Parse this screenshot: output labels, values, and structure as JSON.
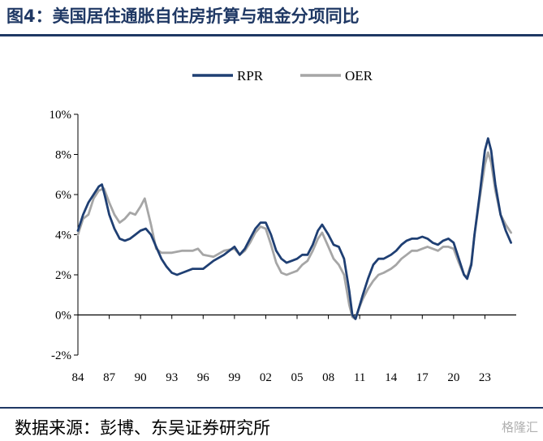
{
  "title": "图4：美国居住通胀自住房折算与租金分项同比",
  "source": "数据来源：彭博、东吴证券研究所",
  "watermark": "格隆汇",
  "colors": {
    "rpr": "#1f3f73",
    "oer": "#a6a6a6",
    "title": "#1f3864"
  },
  "chart_data": {
    "type": "line",
    "title": "",
    "xlabel": "",
    "ylabel": "",
    "x_ticks": [
      "84",
      "87",
      "90",
      "93",
      "96",
      "99",
      "02",
      "05",
      "08",
      "11",
      "14",
      "17",
      "20",
      "23"
    ],
    "y_ticks": [
      "10%",
      "8%",
      "6%",
      "4%",
      "2%",
      "0%",
      "-2%"
    ],
    "xlim": [
      1984.0,
      2026.0
    ],
    "ylim": [
      -2,
      10
    ],
    "legend_position": "top-center",
    "series": [
      {
        "name": "RPR",
        "points": [
          [
            1984.0,
            4.2
          ],
          [
            1984.5,
            5.0
          ],
          [
            1985.0,
            5.6
          ],
          [
            1985.5,
            6.0
          ],
          [
            1986.0,
            6.4
          ],
          [
            1986.3,
            6.5
          ],
          [
            1986.6,
            5.9
          ],
          [
            1987.0,
            5.0
          ],
          [
            1987.5,
            4.3
          ],
          [
            1988.0,
            3.8
          ],
          [
            1988.5,
            3.7
          ],
          [
            1989.0,
            3.8
          ],
          [
            1989.5,
            4.0
          ],
          [
            1990.0,
            4.2
          ],
          [
            1990.5,
            4.3
          ],
          [
            1991.0,
            4.0
          ],
          [
            1991.5,
            3.4
          ],
          [
            1992.0,
            2.8
          ],
          [
            1992.5,
            2.4
          ],
          [
            1993.0,
            2.1
          ],
          [
            1993.5,
            2.0
          ],
          [
            1994.0,
            2.1
          ],
          [
            1995.0,
            2.3
          ],
          [
            1996.0,
            2.3
          ],
          [
            1997.0,
            2.7
          ],
          [
            1998.0,
            3.0
          ],
          [
            1999.0,
            3.4
          ],
          [
            1999.5,
            3.0
          ],
          [
            2000.0,
            3.3
          ],
          [
            2000.5,
            3.8
          ],
          [
            2001.0,
            4.3
          ],
          [
            2001.5,
            4.6
          ],
          [
            2002.0,
            4.6
          ],
          [
            2002.5,
            4.0
          ],
          [
            2003.0,
            3.2
          ],
          [
            2003.5,
            2.8
          ],
          [
            2004.0,
            2.6
          ],
          [
            2004.5,
            2.7
          ],
          [
            2005.0,
            2.8
          ],
          [
            2005.5,
            3.0
          ],
          [
            2006.0,
            3.0
          ],
          [
            2006.5,
            3.5
          ],
          [
            2007.0,
            4.2
          ],
          [
            2007.4,
            4.5
          ],
          [
            2008.0,
            4.0
          ],
          [
            2008.5,
            3.5
          ],
          [
            2009.0,
            3.4
          ],
          [
            2009.5,
            2.8
          ],
          [
            2010.0,
            1.2
          ],
          [
            2010.3,
            0.0
          ],
          [
            2010.6,
            -0.2
          ],
          [
            2010.9,
            0.3
          ],
          [
            2011.3,
            1.0
          ],
          [
            2011.8,
            1.8
          ],
          [
            2012.3,
            2.5
          ],
          [
            2012.8,
            2.8
          ],
          [
            2013.3,
            2.8
          ],
          [
            2014.0,
            3.0
          ],
          [
            2014.5,
            3.2
          ],
          [
            2015.0,
            3.5
          ],
          [
            2015.5,
            3.7
          ],
          [
            2016.0,
            3.8
          ],
          [
            2016.5,
            3.8
          ],
          [
            2017.0,
            3.9
          ],
          [
            2017.5,
            3.8
          ],
          [
            2018.0,
            3.6
          ],
          [
            2018.5,
            3.5
          ],
          [
            2019.0,
            3.7
          ],
          [
            2019.5,
            3.8
          ],
          [
            2020.0,
            3.6
          ],
          [
            2020.5,
            2.8
          ],
          [
            2021.0,
            2.0
          ],
          [
            2021.3,
            1.8
          ],
          [
            2021.7,
            2.5
          ],
          [
            2022.0,
            4.0
          ],
          [
            2022.5,
            6.0
          ],
          [
            2023.0,
            8.2
          ],
          [
            2023.3,
            8.8
          ],
          [
            2023.6,
            8.2
          ],
          [
            2024.0,
            6.5
          ],
          [
            2024.5,
            5.0
          ],
          [
            2025.0,
            4.2
          ],
          [
            2025.5,
            3.6
          ]
        ]
      },
      {
        "name": "OER",
        "points": [
          [
            1984.0,
            4.0
          ],
          [
            1984.5,
            4.8
          ],
          [
            1985.0,
            5.0
          ],
          [
            1985.5,
            5.8
          ],
          [
            1986.0,
            6.2
          ],
          [
            1986.5,
            6.3
          ],
          [
            1987.0,
            5.6
          ],
          [
            1987.5,
            5.0
          ],
          [
            1988.0,
            4.6
          ],
          [
            1988.5,
            4.8
          ],
          [
            1989.0,
            5.1
          ],
          [
            1989.5,
            5.0
          ],
          [
            1990.0,
            5.4
          ],
          [
            1990.4,
            5.8
          ],
          [
            1991.0,
            4.5
          ],
          [
            1991.5,
            3.3
          ],
          [
            1992.0,
            3.1
          ],
          [
            1993.0,
            3.1
          ],
          [
            1994.0,
            3.2
          ],
          [
            1995.0,
            3.2
          ],
          [
            1995.5,
            3.3
          ],
          [
            1996.0,
            3.0
          ],
          [
            1997.0,
            2.9
          ],
          [
            1998.0,
            3.2
          ],
          [
            1999.0,
            3.3
          ],
          [
            1999.5,
            3.0
          ],
          [
            2000.0,
            3.2
          ],
          [
            2000.5,
            3.6
          ],
          [
            2001.0,
            4.1
          ],
          [
            2001.5,
            4.4
          ],
          [
            2002.0,
            4.3
          ],
          [
            2002.5,
            3.5
          ],
          [
            2003.0,
            2.6
          ],
          [
            2003.5,
            2.1
          ],
          [
            2004.0,
            2.0
          ],
          [
            2004.5,
            2.1
          ],
          [
            2005.0,
            2.2
          ],
          [
            2005.5,
            2.5
          ],
          [
            2006.0,
            2.7
          ],
          [
            2006.5,
            3.2
          ],
          [
            2007.0,
            3.8
          ],
          [
            2007.4,
            4.1
          ],
          [
            2008.0,
            3.4
          ],
          [
            2008.5,
            2.8
          ],
          [
            2009.0,
            2.5
          ],
          [
            2009.5,
            2.0
          ],
          [
            2010.0,
            0.5
          ],
          [
            2010.3,
            -0.1
          ],
          [
            2010.6,
            -0.2
          ],
          [
            2010.9,
            0.3
          ],
          [
            2011.3,
            0.8
          ],
          [
            2011.8,
            1.3
          ],
          [
            2012.3,
            1.7
          ],
          [
            2012.8,
            2.0
          ],
          [
            2013.3,
            2.1
          ],
          [
            2014.0,
            2.3
          ],
          [
            2014.5,
            2.5
          ],
          [
            2015.0,
            2.8
          ],
          [
            2015.5,
            3.0
          ],
          [
            2016.0,
            3.2
          ],
          [
            2016.5,
            3.2
          ],
          [
            2017.0,
            3.3
          ],
          [
            2017.5,
            3.4
          ],
          [
            2018.0,
            3.3
          ],
          [
            2018.5,
            3.2
          ],
          [
            2019.0,
            3.4
          ],
          [
            2019.5,
            3.4
          ],
          [
            2020.0,
            3.3
          ],
          [
            2020.5,
            2.6
          ],
          [
            2021.0,
            2.0
          ],
          [
            2021.3,
            1.9
          ],
          [
            2021.7,
            2.6
          ],
          [
            2022.0,
            4.0
          ],
          [
            2022.5,
            5.8
          ],
          [
            2023.0,
            7.5
          ],
          [
            2023.3,
            8.1
          ],
          [
            2023.6,
            7.6
          ],
          [
            2024.0,
            6.2
          ],
          [
            2024.5,
            5.0
          ],
          [
            2025.0,
            4.5
          ],
          [
            2025.5,
            4.1
          ]
        ]
      }
    ]
  }
}
